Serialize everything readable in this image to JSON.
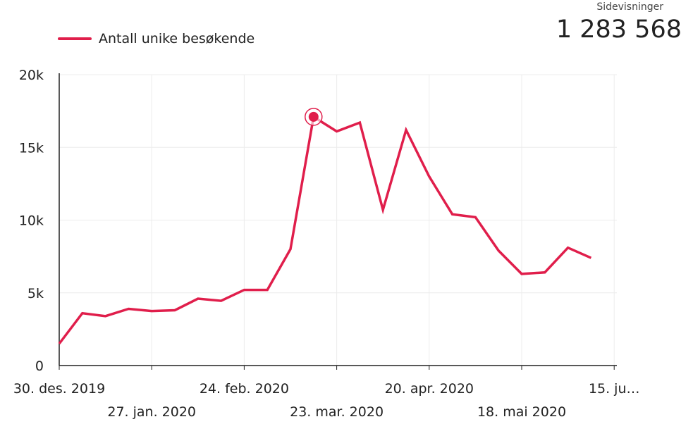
{
  "stat": {
    "label": "Sidevisninger",
    "value": "1 283 568"
  },
  "colors": {
    "line": "#e01e4b",
    "grid": "#ececec",
    "axis": "#222222"
  },
  "chart_data": {
    "type": "line",
    "title": "",
    "xlabel": "",
    "ylabel": "",
    "ylim": [
      0,
      20000
    ],
    "yticks": [
      0,
      5000,
      10000,
      15000,
      20000
    ],
    "ytick_labels": [
      "0",
      "5k",
      "10k",
      "15k",
      "20k"
    ],
    "grid": true,
    "legend_position": "top-left",
    "x_tick_labels": [
      {
        "index": 0,
        "label": "30. des. 2019",
        "row": 1
      },
      {
        "index": 4,
        "label": "27. jan. 2020",
        "row": 2
      },
      {
        "index": 8,
        "label": "24. feb. 2020",
        "row": 1
      },
      {
        "index": 12,
        "label": "23. mar. 2020",
        "row": 2
      },
      {
        "index": 16,
        "label": "20. apr. 2020",
        "row": 1
      },
      {
        "index": 20,
        "label": "18. mai 2020",
        "row": 2
      },
      {
        "index": 24,
        "label": "15. ju…",
        "row": 1
      }
    ],
    "highlight_index": 11,
    "series": [
      {
        "name": "Antall unike besøkende",
        "values": [
          1500,
          3600,
          3400,
          3900,
          3750,
          3800,
          4600,
          4450,
          5200,
          5200,
          8000,
          17100,
          16100,
          16700,
          10700,
          16200,
          13000,
          10400,
          10200,
          7900,
          6300,
          6400,
          8100,
          7400
        ]
      }
    ]
  }
}
